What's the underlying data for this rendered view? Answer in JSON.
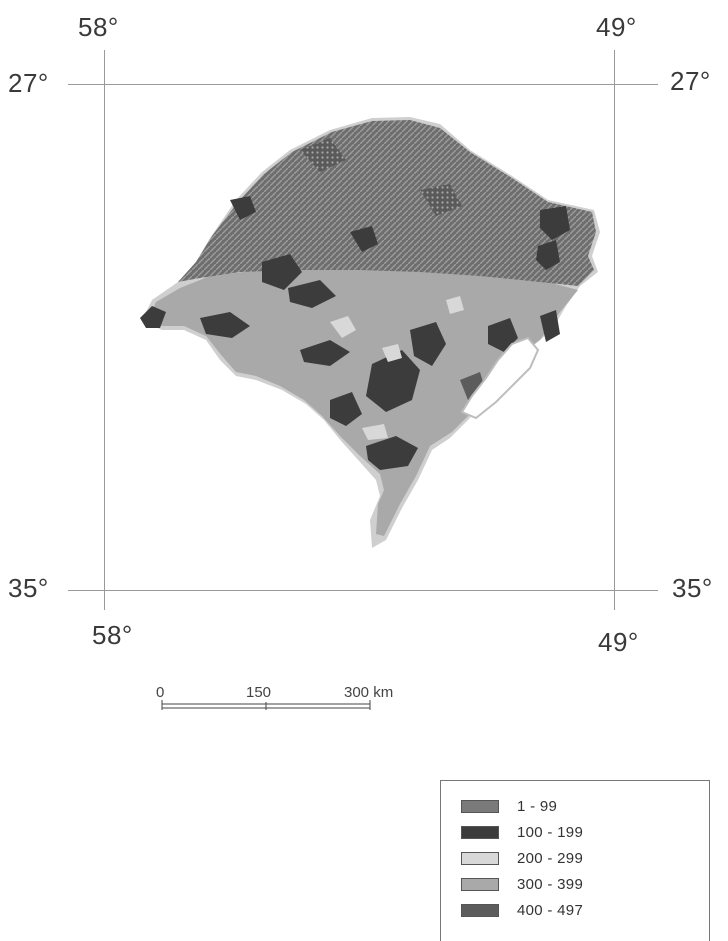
{
  "map": {
    "coordinates": {
      "top_left_lon": "58°",
      "top_right_lon": "49°",
      "bottom_left_lon": "58°",
      "bottom_right_lon": "49°",
      "left_top_lat": "27°",
      "right_top_lat": "27°",
      "left_bottom_lat": "35°",
      "right_bottom_lat": "35°"
    },
    "scale": {
      "tick_0": "0",
      "tick_150": "150",
      "tick_300": "300 km"
    },
    "legend": {
      "items": [
        {
          "label": "1 - 99",
          "color": "#7a7a7a"
        },
        {
          "label": "100 - 199",
          "color": "#3c3c3c"
        },
        {
          "label": "200 - 299",
          "color": "#d8d8d8"
        },
        {
          "label": "300 - 399",
          "color": "#a9a9a9"
        },
        {
          "label": "400 - 497",
          "color": "#5c5c5c"
        }
      ]
    },
    "colors": {
      "water": "#ffffff",
      "border": "#cfcfcf"
    }
  }
}
